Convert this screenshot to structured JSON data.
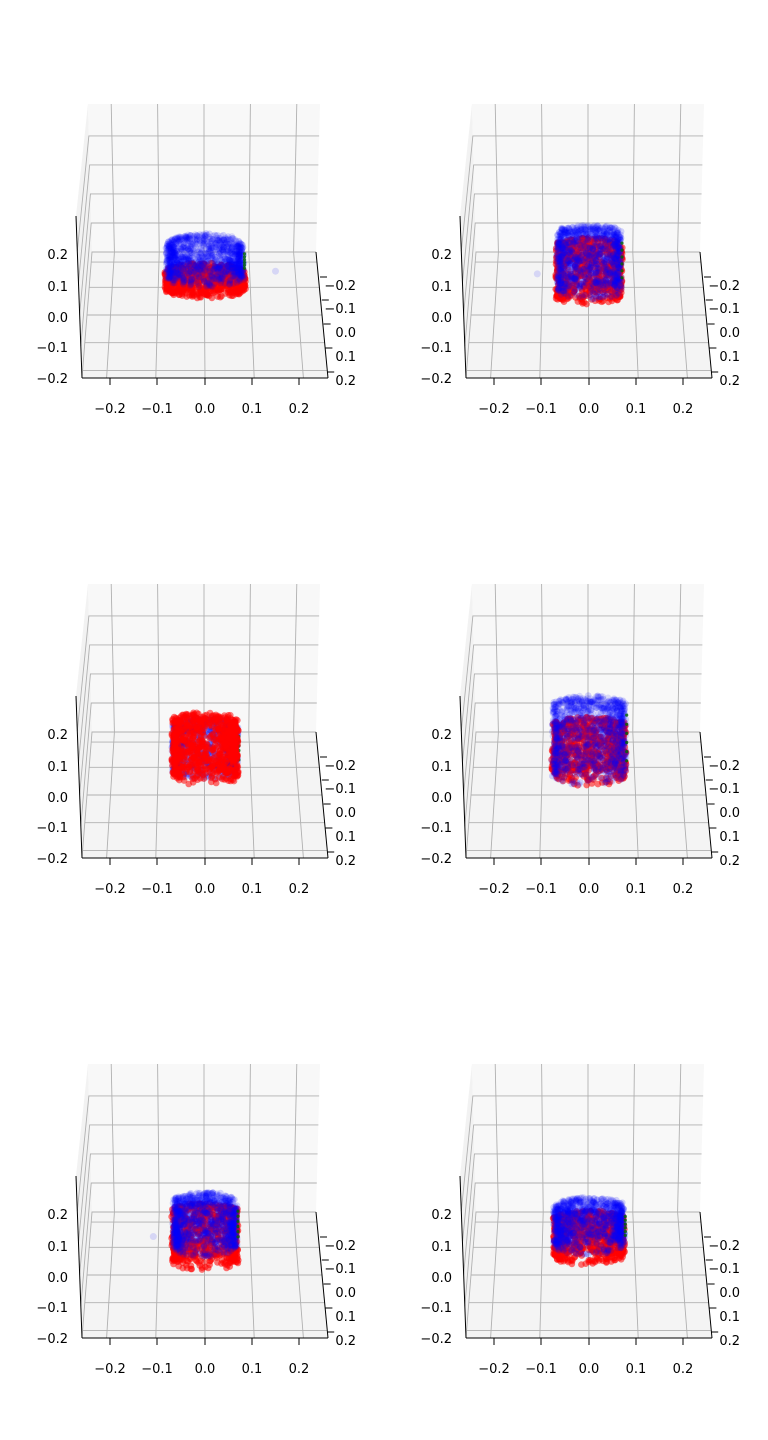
{
  "chart_data": [
    {
      "type": "scatter",
      "projection": "3d",
      "view": "low elevation, nearly front-on",
      "grid": true,
      "xlim": [
        -0.25,
        0.25
      ],
      "ylim": [
        -0.25,
        0.25
      ],
      "zlim": [
        -0.2,
        0.25
      ],
      "x_ticks": [
        "−0.2",
        "−0.1",
        "0.0",
        "0.1",
        "0.2"
      ],
      "y_ticks": [
        "−0.2",
        "−0.1",
        "0.0",
        "0.1",
        "0.2"
      ],
      "z_ticks": [
        "−0.2",
        "−0.1",
        "0.0",
        "0.1",
        "0.2"
      ],
      "colors": {
        "red": "#ff0000",
        "blue": "#0000ff",
        "green": "#006400"
      },
      "clouds": [
        {
          "color": "red",
          "shape": "cylinder",
          "center": [
            0,
            0
          ],
          "radius": 0.085,
          "z_range": [
            0.13,
            0.2
          ]
        },
        {
          "color": "blue",
          "shape": "cylinder",
          "center": [
            0,
            0
          ],
          "radius": 0.082,
          "z_range": [
            0.17,
            0.31
          ]
        }
      ],
      "outliers": [
        {
          "color": "blue",
          "x": 0.15,
          "y": 0.0,
          "z": 0.2
        }
      ]
    },
    {
      "type": "scatter",
      "projection": "3d",
      "view": "low elevation, nearly front-on",
      "grid": true,
      "xlim": [
        -0.25,
        0.25
      ],
      "ylim": [
        -0.25,
        0.25
      ],
      "zlim": [
        -0.2,
        0.25
      ],
      "x_ticks": [
        "−0.2",
        "−0.1",
        "0.0",
        "0.1",
        "0.2"
      ],
      "y_ticks": [
        "−0.2",
        "−0.1",
        "0.0",
        "0.1",
        "0.2"
      ],
      "z_ticks": [
        "−0.2",
        "−0.1",
        "0.0",
        "0.1",
        "0.2"
      ],
      "colors": {
        "red": "#ff0000",
        "blue": "#0000ff",
        "green": "#006400"
      },
      "clouds": [
        {
          "color": "red",
          "shape": "cylinder",
          "center": [
            0,
            0
          ],
          "radius": 0.07,
          "z_range": [
            0.1,
            0.3
          ]
        },
        {
          "color": "blue",
          "shape": "cylinder",
          "center": [
            0,
            0
          ],
          "radius": 0.068,
          "z_range": [
            0.12,
            0.35
          ]
        }
      ],
      "outliers": [
        {
          "color": "blue",
          "x": -0.11,
          "y": 0.0,
          "z": 0.19
        }
      ]
    },
    {
      "type": "scatter",
      "projection": "3d",
      "view": "low elevation, nearly front-on",
      "grid": true,
      "xlim": [
        -0.25,
        0.25
      ],
      "ylim": [
        -0.25,
        0.25
      ],
      "zlim": [
        -0.2,
        0.25
      ],
      "x_ticks": [
        "−0.2",
        "−0.1",
        "0.0",
        "0.1",
        "0.2"
      ],
      "y_ticks": [
        "−0.2",
        "−0.1",
        "0.0",
        "0.1",
        "0.2"
      ],
      "z_ticks": [
        "−0.2",
        "−0.1",
        "0.0",
        "0.1",
        "0.2"
      ],
      "colors": {
        "red": "#ff0000",
        "blue": "#0000ff",
        "green": "#006400"
      },
      "clouds": [
        {
          "color": "blue",
          "shape": "cylinder",
          "center": [
            0,
            0
          ],
          "radius": 0.07,
          "z_range": [
            0.12,
            0.3
          ]
        },
        {
          "color": "red",
          "shape": "cylinder",
          "center": [
            0,
            0
          ],
          "radius": 0.07,
          "z_range": [
            0.1,
            0.32
          ]
        }
      ],
      "outliers": []
    },
    {
      "type": "scatter",
      "projection": "3d",
      "view": "low elevation, nearly front-on",
      "grid": true,
      "xlim": [
        -0.25,
        0.25
      ],
      "ylim": [
        -0.25,
        0.25
      ],
      "zlim": [
        -0.2,
        0.25
      ],
      "x_ticks": [
        "−0.2",
        "−0.1",
        "0.0",
        "0.1",
        "0.2"
      ],
      "y_ticks": [
        "−0.2",
        "−0.1",
        "0.0",
        "0.1",
        "0.2"
      ],
      "z_ticks": [
        "−0.2",
        "−0.1",
        "0.0",
        "0.1",
        "0.2"
      ],
      "colors": {
        "red": "#ff0000",
        "blue": "#0000ff",
        "green": "#006400"
      },
      "clouds": [
        {
          "color": "red",
          "shape": "cylinder",
          "center": [
            0,
            0
          ],
          "radius": 0.078,
          "z_range": [
            0.1,
            0.3
          ]
        },
        {
          "color": "blue",
          "shape": "cylinder",
          "center": [
            0,
            0
          ],
          "radius": 0.078,
          "z_range": [
            0.1,
            0.38
          ]
        }
      ],
      "outliers": []
    },
    {
      "type": "scatter",
      "projection": "3d",
      "view": "low elevation, nearly front-on",
      "grid": true,
      "xlim": [
        -0.25,
        0.25
      ],
      "ylim": [
        -0.25,
        0.25
      ],
      "zlim": [
        -0.2,
        0.25
      ],
      "x_ticks": [
        "−0.2",
        "−0.1",
        "0.0",
        "0.1",
        "0.2"
      ],
      "y_ticks": [
        "−0.2",
        "−0.1",
        "0.0",
        "0.1",
        "0.2"
      ],
      "z_ticks": [
        "−0.2",
        "−0.1",
        "0.0",
        "0.1",
        "0.2"
      ],
      "colors": {
        "red": "#ff0000",
        "blue": "#0000ff",
        "green": "#006400"
      },
      "clouds": [
        {
          "color": "red",
          "shape": "cylinder",
          "center": [
            0,
            0
          ],
          "radius": 0.07,
          "z_range": [
            0.08,
            0.28
          ]
        },
        {
          "color": "blue",
          "shape": "cylinder",
          "center": [
            0,
            0
          ],
          "radius": 0.068,
          "z_range": [
            0.13,
            0.32
          ]
        }
      ],
      "outliers": [
        {
          "color": "blue",
          "x": -0.11,
          "y": 0.0,
          "z": 0.18
        }
      ]
    },
    {
      "type": "scatter",
      "projection": "3d",
      "view": "low elevation, nearly front-on",
      "grid": true,
      "xlim": [
        -0.25,
        0.25
      ],
      "ylim": [
        -0.25,
        0.25
      ],
      "zlim": [
        -0.2,
        0.25
      ],
      "x_ticks": [
        "−0.2",
        "−0.1",
        "0.0",
        "0.1",
        "0.2"
      ],
      "y_ticks": [
        "−0.2",
        "−0.1",
        "0.0",
        "0.1",
        "0.2"
      ],
      "z_ticks": [
        "−0.2",
        "−0.1",
        "0.0",
        "0.1",
        "0.2"
      ],
      "colors": {
        "red": "#ff0000",
        "blue": "#0000ff",
        "green": "#006400"
      },
      "clouds": [
        {
          "color": "red",
          "shape": "cylinder",
          "center": [
            0,
            0
          ],
          "radius": 0.075,
          "z_range": [
            0.1,
            0.25
          ]
        },
        {
          "color": "blue",
          "shape": "cylinder",
          "center": [
            0,
            0
          ],
          "radius": 0.075,
          "z_range": [
            0.14,
            0.3
          ]
        }
      ],
      "outliers": []
    }
  ]
}
